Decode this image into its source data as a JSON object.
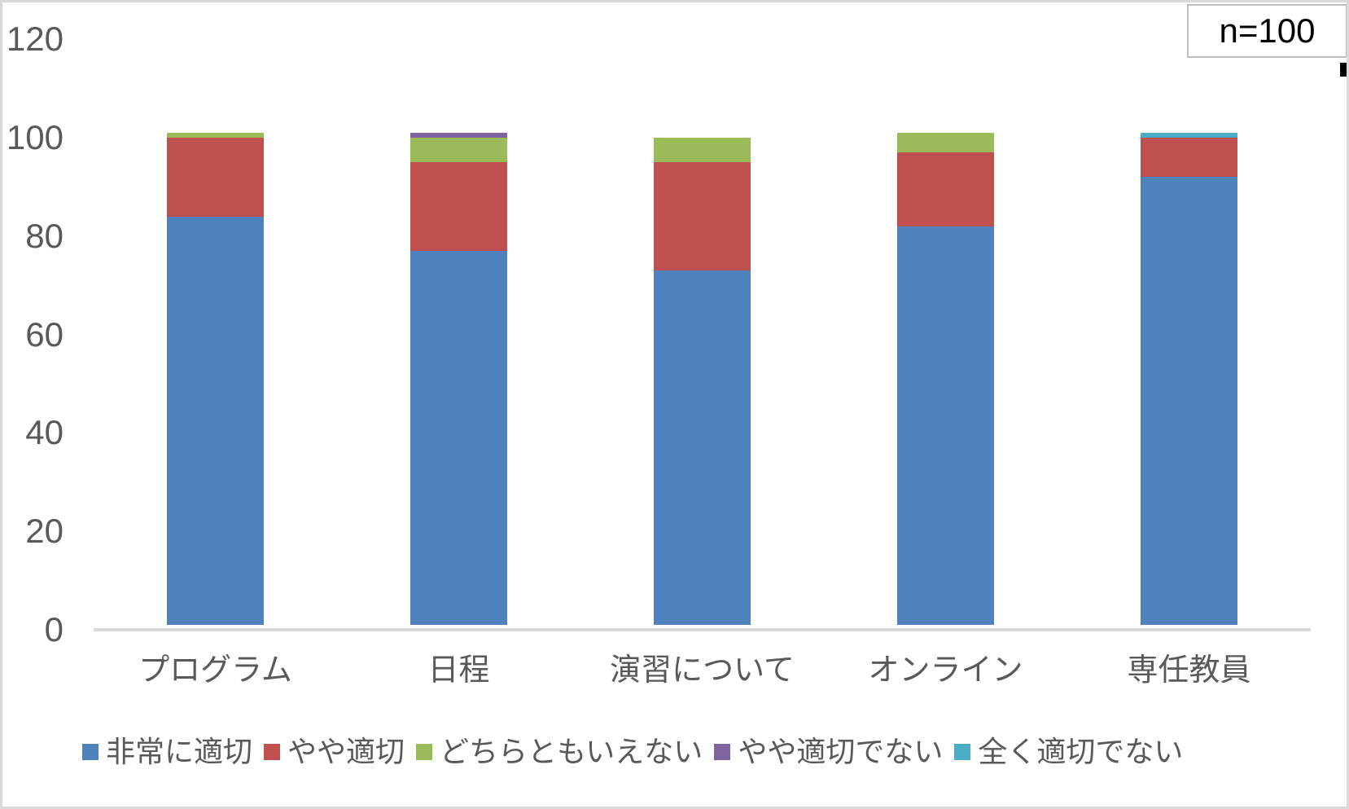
{
  "annotation": {
    "text": "n=100"
  },
  "colors": {
    "series_blue": "#4F81BD",
    "series_red": "#C0504D",
    "series_green": "#9BBB59",
    "series_purple": "#8064A2",
    "series_cyan": "#4BACC6",
    "axis_line": "#D9D9D9",
    "tick_text": "#595959",
    "chart_border": "#D9D9D9",
    "annotation_border": "#BFBFBF",
    "annotation_text": "#000000"
  },
  "chart_data": {
    "type": "bar",
    "stacked": true,
    "title": "",
    "xlabel": "",
    "ylabel": "",
    "annotation": "n=100",
    "grid": false,
    "legend_position": "bottom",
    "categories": [
      "プログラム",
      "日程",
      "演習について",
      "オンライン",
      "専任教員"
    ],
    "series": [
      {
        "name": "非常に適切",
        "color": "#4F81BD",
        "values": [
          83,
          76,
          72,
          81,
          91
        ]
      },
      {
        "name": "やや適切",
        "color": "#C0504D",
        "values": [
          16,
          18,
          22,
          15,
          8
        ]
      },
      {
        "name": "どちらともいえない",
        "color": "#9BBB59",
        "values": [
          1,
          5,
          5,
          4,
          0
        ]
      },
      {
        "name": "やや適切でない",
        "color": "#8064A2",
        "values": [
          0,
          1,
          0,
          0,
          0
        ]
      },
      {
        "name": "全く適切でない",
        "color": "#4BACC6",
        "values": [
          0,
          0,
          0,
          0,
          1
        ]
      }
    ],
    "totals": [
      100,
      100,
      99,
      100,
      100
    ],
    "y_axis": {
      "min": 0,
      "max": 120,
      "step": 20,
      "ticks": [
        0,
        20,
        40,
        60,
        80,
        100,
        120
      ]
    }
  }
}
